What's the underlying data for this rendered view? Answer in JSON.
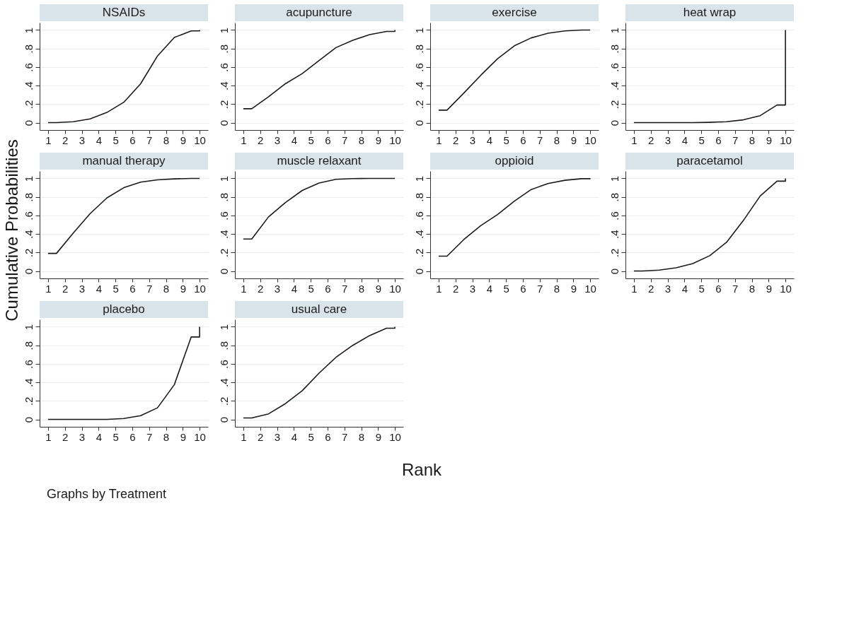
{
  "chart_data": [
    {
      "type": "line",
      "title": "NSAIDs",
      "x": [
        1,
        1.5,
        2.5,
        3.5,
        4.5,
        5.5,
        6.5,
        7.5,
        8.5,
        9.5,
        10,
        10
      ],
      "values": [
        0,
        0,
        0.01,
        0.04,
        0.11,
        0.22,
        0.42,
        0.72,
        0.92,
        0.99,
        0.99,
        1
      ],
      "color": "#1a1a1a",
      "xlim": [
        0.5,
        10.5
      ],
      "xticks": [
        1,
        2,
        3,
        4,
        5,
        6,
        7,
        8,
        9,
        10
      ],
      "ylim": [
        -0.08,
        1.08
      ],
      "yticks": [
        0,
        {
          "value": 0.2,
          "label": ".2"
        },
        {
          "value": 0.4,
          "label": ".4"
        },
        {
          "value": 0.6,
          "label": ".6"
        },
        {
          "value": 0.8,
          "label": ".8"
        },
        1
      ],
      "grid": "y"
    },
    {
      "type": "line",
      "title": "acupuncture",
      "x": [
        1,
        1.5,
        2.5,
        3.5,
        4.5,
        5.5,
        6.5,
        7.5,
        8.5,
        9.5,
        10,
        10
      ],
      "values": [
        0.15,
        0.15,
        0.28,
        0.42,
        0.53,
        0.67,
        0.81,
        0.89,
        0.95,
        0.985,
        0.985,
        1
      ],
      "color": "#1a1a1a",
      "xlim": [
        0.5,
        10.5
      ],
      "xticks": [
        1,
        2,
        3,
        4,
        5,
        6,
        7,
        8,
        9,
        10
      ],
      "ylim": [
        -0.08,
        1.08
      ],
      "yticks": [
        0,
        {
          "value": 0.2,
          "label": ".2"
        },
        {
          "value": 0.4,
          "label": ".4"
        },
        {
          "value": 0.6,
          "label": ".6"
        },
        {
          "value": 0.8,
          "label": ".8"
        },
        1
      ],
      "grid": "y"
    },
    {
      "type": "line",
      "title": "exercise",
      "x": [
        1,
        1.5,
        2.5,
        3.5,
        4.5,
        5.5,
        6.5,
        7.5,
        8.5,
        9.5,
        10,
        10
      ],
      "values": [
        0.135,
        0.135,
        0.32,
        0.51,
        0.69,
        0.83,
        0.915,
        0.965,
        0.99,
        1,
        1,
        1
      ],
      "color": "#1a1a1a",
      "xlim": [
        0.5,
        10.5
      ],
      "xticks": [
        1,
        2,
        3,
        4,
        5,
        6,
        7,
        8,
        9,
        10
      ],
      "ylim": [
        -0.08,
        1.08
      ],
      "yticks": [
        0,
        {
          "value": 0.2,
          "label": ".2"
        },
        {
          "value": 0.4,
          "label": ".4"
        },
        {
          "value": 0.6,
          "label": ".6"
        },
        {
          "value": 0.8,
          "label": ".8"
        },
        1
      ],
      "grid": "y"
    },
    {
      "type": "line",
      "title": "heat wrap",
      "x": [
        1,
        1.5,
        2.5,
        3.5,
        4.5,
        5.5,
        6.5,
        7.5,
        8.5,
        9.5,
        10,
        10
      ],
      "values": [
        0,
        0,
        0,
        0,
        0,
        0.003,
        0.01,
        0.03,
        0.075,
        0.19,
        0.19,
        1
      ],
      "color": "#1a1a1a",
      "xlim": [
        0.5,
        10.5
      ],
      "xticks": [
        1,
        2,
        3,
        4,
        5,
        6,
        7,
        8,
        9,
        10
      ],
      "ylim": [
        -0.08,
        1.08
      ],
      "yticks": [
        0,
        {
          "value": 0.2,
          "label": ".2"
        },
        {
          "value": 0.4,
          "label": ".4"
        },
        {
          "value": 0.6,
          "label": ".6"
        },
        {
          "value": 0.8,
          "label": ".8"
        },
        1
      ],
      "grid": "y"
    },
    {
      "type": "line",
      "title": "manual therapy",
      "ylabel": "Cumulative Probabilities",
      "x": [
        1,
        1.5,
        2.5,
        3.5,
        4.5,
        5.5,
        6.5,
        7.5,
        8.5,
        9.5,
        10,
        10
      ],
      "values": [
        0.19,
        0.19,
        0.41,
        0.62,
        0.79,
        0.9,
        0.96,
        0.985,
        0.995,
        1,
        1,
        1
      ],
      "color": "#1a1a1a",
      "xlim": [
        0.5,
        10.5
      ],
      "xticks": [
        1,
        2,
        3,
        4,
        5,
        6,
        7,
        8,
        9,
        10
      ],
      "ylim": [
        -0.08,
        1.08
      ],
      "yticks": [
        0,
        {
          "value": 0.2,
          "label": ".2"
        },
        {
          "value": 0.4,
          "label": ".4"
        },
        {
          "value": 0.6,
          "label": ".6"
        },
        {
          "value": 0.8,
          "label": ".8"
        },
        1
      ],
      "grid": "y"
    },
    {
      "type": "line",
      "title": "muscle relaxant",
      "x": [
        1,
        1.5,
        2.5,
        3.5,
        4.5,
        5.5,
        6.5,
        7.5,
        8.5,
        9.5,
        10,
        10
      ],
      "values": [
        0.345,
        0.345,
        0.585,
        0.74,
        0.87,
        0.95,
        0.99,
        0.998,
        1,
        1,
        1,
        1
      ],
      "color": "#1a1a1a",
      "xlim": [
        0.5,
        10.5
      ],
      "xticks": [
        1,
        2,
        3,
        4,
        5,
        6,
        7,
        8,
        9,
        10
      ],
      "ylim": [
        -0.08,
        1.08
      ],
      "yticks": [
        0,
        {
          "value": 0.2,
          "label": ".2"
        },
        {
          "value": 0.4,
          "label": ".4"
        },
        {
          "value": 0.6,
          "label": ".6"
        },
        {
          "value": 0.8,
          "label": ".8"
        },
        1
      ],
      "grid": "y"
    },
    {
      "type": "line",
      "title": "oppioid",
      "x": [
        1,
        1.5,
        2.5,
        3.5,
        4.5,
        5.5,
        6.5,
        7.5,
        8.5,
        9.5,
        10,
        10
      ],
      "values": [
        0.16,
        0.16,
        0.34,
        0.49,
        0.61,
        0.755,
        0.88,
        0.945,
        0.98,
        0.997,
        0.997,
        1
      ],
      "color": "#1a1a1a",
      "xlim": [
        0.5,
        10.5
      ],
      "xticks": [
        1,
        2,
        3,
        4,
        5,
        6,
        7,
        8,
        9,
        10
      ],
      "ylim": [
        -0.08,
        1.08
      ],
      "yticks": [
        0,
        {
          "value": 0.2,
          "label": ".2"
        },
        {
          "value": 0.4,
          "label": ".4"
        },
        {
          "value": 0.6,
          "label": ".6"
        },
        {
          "value": 0.8,
          "label": ".8"
        },
        1
      ],
      "grid": "y"
    },
    {
      "type": "line",
      "title": "paracetamol",
      "x": [
        1,
        1.5,
        2.5,
        3.5,
        4.5,
        5.5,
        6.5,
        7.5,
        8.5,
        9.5,
        10,
        10
      ],
      "values": [
        0,
        0,
        0.01,
        0.035,
        0.08,
        0.165,
        0.31,
        0.545,
        0.81,
        0.97,
        0.97,
        1
      ],
      "color": "#1a1a1a",
      "xlim": [
        0.5,
        10.5
      ],
      "xticks": [
        1,
        2,
        3,
        4,
        5,
        6,
        7,
        8,
        9,
        10
      ],
      "ylim": [
        -0.08,
        1.08
      ],
      "yticks": [
        0,
        {
          "value": 0.2,
          "label": ".2"
        },
        {
          "value": 0.4,
          "label": ".4"
        },
        {
          "value": 0.6,
          "label": ".6"
        },
        {
          "value": 0.8,
          "label": ".8"
        },
        1
      ],
      "grid": "y"
    },
    {
      "type": "line",
      "title": "placebo",
      "annotations": [
        "Graphs by Treatment"
      ],
      "x": [
        1,
        1.5,
        2.5,
        3.5,
        4.5,
        5.5,
        6.5,
        7.5,
        8.5,
        9.5,
        10,
        10
      ],
      "values": [
        0,
        0,
        0,
        0,
        0,
        0.01,
        0.04,
        0.125,
        0.375,
        0.89,
        0.89,
        1
      ],
      "color": "#1a1a1a",
      "xlim": [
        0.5,
        10.5
      ],
      "xticks": [
        1,
        2,
        3,
        4,
        5,
        6,
        7,
        8,
        9,
        10
      ],
      "ylim": [
        -0.08,
        1.08
      ],
      "yticks": [
        0,
        {
          "value": 0.2,
          "label": ".2"
        },
        {
          "value": 0.4,
          "label": ".4"
        },
        {
          "value": 0.6,
          "label": ".6"
        },
        {
          "value": 0.8,
          "label": ".8"
        },
        1
      ],
      "grid": "y"
    },
    {
      "type": "line",
      "title": "usual care",
      "xlabel": "Rank",
      "x": [
        1,
        1.5,
        2.5,
        3.5,
        4.5,
        5.5,
        6.5,
        7.5,
        8.5,
        9.5,
        10,
        10
      ],
      "values": [
        0.015,
        0.015,
        0.06,
        0.17,
        0.31,
        0.5,
        0.67,
        0.8,
        0.905,
        0.985,
        0.985,
        1
      ],
      "color": "#1a1a1a",
      "xlim": [
        0.5,
        10.5
      ],
      "xticks": [
        1,
        2,
        3,
        4,
        5,
        6,
        7,
        8,
        9,
        10
      ],
      "ylim": [
        -0.08,
        1.08
      ],
      "yticks": [
        0,
        {
          "value": 0.2,
          "label": ".2"
        },
        {
          "value": 0.4,
          "label": ".4"
        },
        {
          "value": 0.6,
          "label": ".6"
        },
        {
          "value": 0.8,
          "label": ".8"
        },
        1
      ],
      "grid": "y"
    }
  ]
}
